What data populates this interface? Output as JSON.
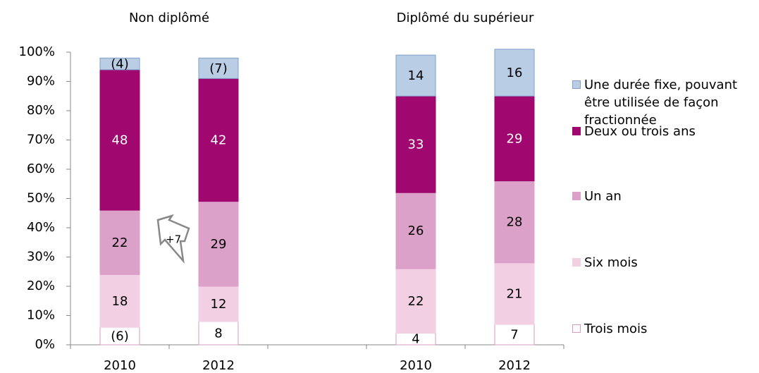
{
  "chart_data": {
    "type": "stacked-bar",
    "groups": [
      {
        "name": "Non diplômé",
        "categories": [
          0,
          1
        ]
      },
      {
        "name": "Diplômé du supérieur",
        "categories": [
          3,
          4
        ]
      }
    ],
    "categories": [
      "2010",
      "2012",
      null,
      "2010",
      "2012"
    ],
    "ylim": [
      0,
      100
    ],
    "yticks": [
      {
        "value": 0,
        "label": "0%"
      },
      {
        "value": 10,
        "label": "10%"
      },
      {
        "value": 20,
        "label": "20%"
      },
      {
        "value": 30,
        "label": "30%"
      },
      {
        "value": 40,
        "label": "40%"
      },
      {
        "value": 50,
        "label": "50%"
      },
      {
        "value": 60,
        "label": "60%"
      },
      {
        "value": 70,
        "label": "70%"
      },
      {
        "value": 80,
        "label": "80%"
      },
      {
        "value": 90,
        "label": "90%"
      },
      {
        "value": 100,
        "label": "100%"
      }
    ],
    "series": [
      {
        "name": "Trois mois",
        "color": "#ffffff",
        "border": "#d99ac0",
        "text_color": "#000000",
        "values": [
          6,
          8,
          null,
          4,
          7
        ],
        "value_labels": [
          "(6)",
          "8",
          null,
          "4",
          "7"
        ]
      },
      {
        "name": "Six mois",
        "color": "#f2cfe3",
        "border": "#f2cfe3",
        "text_color": "#000000",
        "values": [
          18,
          12,
          null,
          22,
          21
        ]
      },
      {
        "name": "Un an",
        "color": "#dca1c9",
        "border": "#dca1c9",
        "text_color": "#000000",
        "values": [
          22,
          29,
          null,
          26,
          28
        ]
      },
      {
        "name": "Deux ou trois ans",
        "color": "#a0076f",
        "border": "#a0076f",
        "text_color": "#ffffff",
        "values": [
          48,
          42,
          null,
          33,
          29
        ]
      },
      {
        "name": "Une durée fixe, pouvant être utilisée de façon fractionnée",
        "color": "#b9cde5",
        "border": "#7f9fc8",
        "text_color": "#000000",
        "values": [
          4,
          7,
          null,
          14,
          16
        ],
        "value_labels": [
          "(4)",
          "(7)",
          null,
          "14",
          "16"
        ]
      }
    ],
    "annotation": "+7"
  }
}
